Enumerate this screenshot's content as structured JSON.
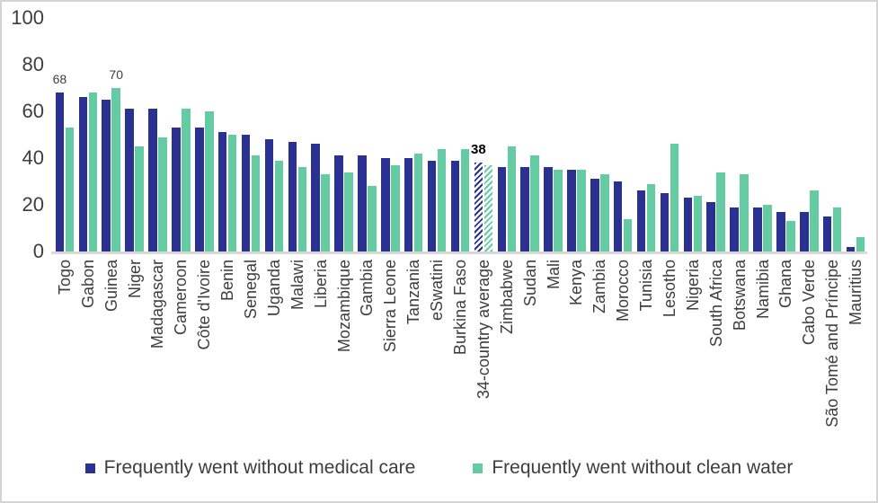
{
  "chart_data": {
    "type": "bar",
    "title": "",
    "categories": [
      "Togo",
      "Gabon",
      "Guinea",
      "Niger",
      "Madagascar",
      "Cameroon",
      "Côte d'Ivoire",
      "Benin",
      "Senegal",
      "Uganda",
      "Malawi",
      "Liberia",
      "Mozambique",
      "Gambia",
      "Sierra Leone",
      "Tanzania",
      "eSwatini",
      "Burkina Faso",
      "34-country average",
      "Zimbabwe",
      "Sudan",
      "Mali",
      "Kenya",
      "Zambia",
      "Morocco",
      "Tunisia",
      "Lesotho",
      "Nigeria",
      "South Africa",
      "Botswana",
      "Namibia",
      "Ghana",
      "Cabo Verde",
      "São Tomé and Príncipe",
      "Mauritius"
    ],
    "series": [
      {
        "name": "Frequently went without medical care",
        "color": "#2A3190",
        "values": [
          68,
          66,
          65,
          61,
          61,
          53,
          53,
          51,
          50,
          48,
          47,
          46,
          41,
          41,
          40,
          40,
          39,
          39,
          38,
          36,
          36,
          36,
          35,
          31,
          30,
          26,
          25,
          23,
          21,
          19,
          19,
          17,
          17,
          15,
          2
        ]
      },
      {
        "name": "Frequently went without clean water",
        "color": "#64CBA2",
        "values": [
          53,
          68,
          70,
          45,
          49,
          61,
          60,
          50,
          41,
          39,
          36,
          33,
          34,
          28,
          37,
          42,
          44,
          44,
          37,
          45,
          41,
          35,
          35,
          33,
          14,
          29,
          46,
          24,
          34,
          33,
          20,
          13,
          26,
          19,
          6
        ]
      }
    ],
    "highlight_category": "34-country average",
    "highlight_style": "diagonal-hatch",
    "annotations": [
      {
        "category": "Togo",
        "series": 0,
        "text": "68",
        "bold": false
      },
      {
        "category": "Guinea",
        "series": 1,
        "text": "70",
        "bold": false
      },
      {
        "category": "34-country average",
        "series": 0,
        "text": "38",
        "bold": true
      }
    ],
    "ylim": [
      0,
      100
    ],
    "yticks": [
      0,
      20,
      40,
      60,
      80,
      100
    ],
    "grid": false,
    "legend_position": "bottom",
    "axis_line_color": "#d9d9d9",
    "text_color": "#3d3d3d",
    "annotation_bold_color": "#000000"
  }
}
